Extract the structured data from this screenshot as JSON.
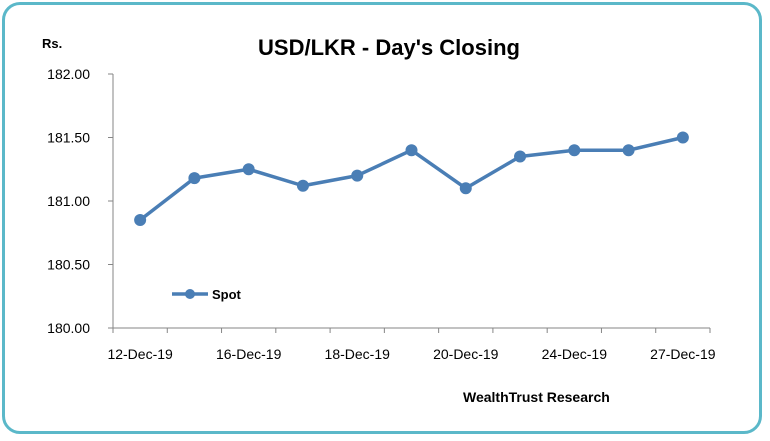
{
  "chart_data": {
    "type": "line",
    "title": "USD/LKR - Day's Closing",
    "ylabel": "Rs.",
    "ylim": [
      180.0,
      182.0
    ],
    "yticks": [
      "180.00",
      "180.50",
      "181.00",
      "181.50",
      "182.00"
    ],
    "x_tick_labels": [
      "12-Dec-19",
      "16-Dec-19",
      "18-Dec-19",
      "20-Dec-19",
      "24-Dec-19",
      "27-Dec-19"
    ],
    "series": [
      {
        "name": "Spot",
        "color": "#4a7eb5",
        "values": [
          180.85,
          181.18,
          181.25,
          181.12,
          181.2,
          181.4,
          181.1,
          181.35,
          181.4,
          181.4,
          181.5
        ]
      }
    ],
    "legend_position": "bottom-left",
    "grid": false
  },
  "footer": {
    "source": "WealthTrust Research"
  }
}
